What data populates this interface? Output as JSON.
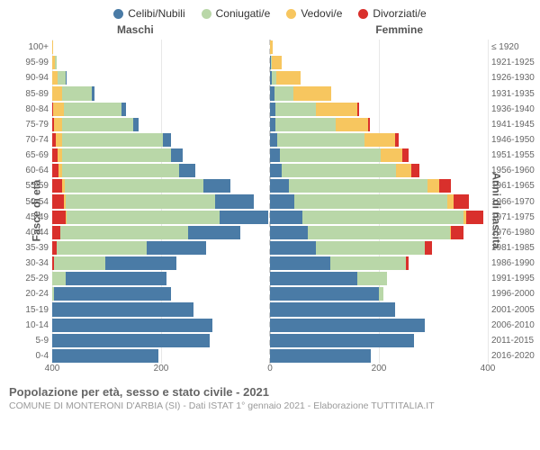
{
  "chart": {
    "type": "population-pyramid",
    "legend": [
      {
        "label": "Celibi/Nubili",
        "color": "#4a7ba6"
      },
      {
        "label": "Coniugati/e",
        "color": "#b9d7a8"
      },
      {
        "label": "Vedovi/e",
        "color": "#f7c65f"
      },
      {
        "label": "Divorziati/e",
        "color": "#d9302c"
      }
    ],
    "headers": {
      "male": "Maschi",
      "female": "Femmine"
    },
    "y_left_title": "Fasce di età",
    "y_right_title": "Anni di nascita",
    "x_max": 400,
    "x_ticks": [
      400,
      200,
      0,
      200,
      400
    ],
    "grid_color": "#e8e8e8",
    "center_line_color": "#cccccc",
    "background_color": "#ffffff",
    "label_fontsize": 10,
    "rows": [
      {
        "age": "0-4",
        "birth": "2016-2020",
        "male": {
          "cel": 195,
          "con": 0,
          "ved": 0,
          "div": 0
        },
        "female": {
          "cel": 185,
          "con": 0,
          "ved": 0,
          "div": 0
        }
      },
      {
        "age": "5-9",
        "birth": "2011-2015",
        "male": {
          "cel": 290,
          "con": 0,
          "ved": 0,
          "div": 0
        },
        "female": {
          "cel": 265,
          "con": 0,
          "ved": 0,
          "div": 0
        }
      },
      {
        "age": "10-14",
        "birth": "2006-2010",
        "male": {
          "cel": 295,
          "con": 0,
          "ved": 0,
          "div": 0
        },
        "female": {
          "cel": 285,
          "con": 0,
          "ved": 0,
          "div": 0
        }
      },
      {
        "age": "15-19",
        "birth": "2001-2005",
        "male": {
          "cel": 260,
          "con": 0,
          "ved": 0,
          "div": 0
        },
        "female": {
          "cel": 230,
          "con": 0,
          "ved": 0,
          "div": 0
        }
      },
      {
        "age": "20-24",
        "birth": "1996-2000",
        "male": {
          "cel": 215,
          "con": 3,
          "ved": 0,
          "div": 0
        },
        "female": {
          "cel": 200,
          "con": 8,
          "ved": 0,
          "div": 0
        }
      },
      {
        "age": "25-29",
        "birth": "1991-1995",
        "male": {
          "cel": 185,
          "con": 25,
          "ved": 0,
          "div": 0
        },
        "female": {
          "cel": 160,
          "con": 55,
          "ved": 0,
          "div": 0
        }
      },
      {
        "age": "30-34",
        "birth": "1986-1990",
        "male": {
          "cel": 130,
          "con": 95,
          "ved": 0,
          "div": 3
        },
        "female": {
          "cel": 110,
          "con": 140,
          "ved": 0,
          "div": 5
        }
      },
      {
        "age": "35-39",
        "birth": "1981-1985",
        "male": {
          "cel": 110,
          "con": 165,
          "ved": 0,
          "div": 8
        },
        "female": {
          "cel": 85,
          "con": 200,
          "ved": 0,
          "div": 12
        }
      },
      {
        "age": "40-44",
        "birth": "1976-1980",
        "male": {
          "cel": 95,
          "con": 235,
          "ved": 0,
          "div": 15
        },
        "female": {
          "cel": 70,
          "con": 260,
          "ved": 3,
          "div": 22
        }
      },
      {
        "age": "45-49",
        "birth": "1971-1975",
        "male": {
          "cel": 90,
          "con": 280,
          "ved": 2,
          "div": 25
        },
        "female": {
          "cel": 60,
          "con": 295,
          "ved": 6,
          "div": 30
        }
      },
      {
        "age": "50-54",
        "birth": "1966-1970",
        "male": {
          "cel": 70,
          "con": 275,
          "ved": 3,
          "div": 22
        },
        "female": {
          "cel": 45,
          "con": 280,
          "ved": 12,
          "div": 28
        }
      },
      {
        "age": "55-59",
        "birth": "1961-1965",
        "male": {
          "cel": 50,
          "con": 255,
          "ved": 5,
          "div": 18
        },
        "female": {
          "cel": 35,
          "con": 255,
          "ved": 20,
          "div": 22
        }
      },
      {
        "age": "60-64",
        "birth": "1956-1960",
        "male": {
          "cel": 30,
          "con": 215,
          "ved": 6,
          "div": 12
        },
        "female": {
          "cel": 22,
          "con": 210,
          "ved": 28,
          "div": 15
        }
      },
      {
        "age": "65-69",
        "birth": "1951-1955",
        "male": {
          "cel": 22,
          "con": 200,
          "ved": 8,
          "div": 10
        },
        "female": {
          "cel": 18,
          "con": 185,
          "ved": 40,
          "div": 12
        }
      },
      {
        "age": "70-74",
        "birth": "1946-1950",
        "male": {
          "cel": 15,
          "con": 185,
          "ved": 12,
          "div": 6
        },
        "female": {
          "cel": 14,
          "con": 160,
          "ved": 55,
          "div": 8
        }
      },
      {
        "age": "75-79",
        "birth": "1941-1945",
        "male": {
          "cel": 10,
          "con": 130,
          "ved": 15,
          "div": 3
        },
        "female": {
          "cel": 10,
          "con": 110,
          "ved": 60,
          "div": 4
        }
      },
      {
        "age": "80-84",
        "birth": "1936-1940",
        "male": {
          "cel": 8,
          "con": 105,
          "ved": 20,
          "div": 2
        },
        "female": {
          "cel": 10,
          "con": 75,
          "ved": 75,
          "div": 3
        }
      },
      {
        "age": "85-89",
        "birth": "1931-1935",
        "male": {
          "cel": 5,
          "con": 55,
          "ved": 18,
          "div": 0
        },
        "female": {
          "cel": 8,
          "con": 35,
          "ved": 70,
          "div": 0
        }
      },
      {
        "age": "90-94",
        "birth": "1926-1930",
        "male": {
          "cel": 2,
          "con": 15,
          "ved": 10,
          "div": 0
        },
        "female": {
          "cel": 4,
          "con": 8,
          "ved": 45,
          "div": 0
        }
      },
      {
        "age": "95-99",
        "birth": "1921-1925",
        "male": {
          "cel": 0,
          "con": 3,
          "ved": 5,
          "div": 0
        },
        "female": {
          "cel": 2,
          "con": 2,
          "ved": 18,
          "div": 0
        }
      },
      {
        "age": "100+",
        "birth": "≤ 1920",
        "male": {
          "cel": 0,
          "con": 0,
          "ved": 2,
          "div": 0
        },
        "female": {
          "cel": 0,
          "con": 0,
          "ved": 5,
          "div": 0
        }
      }
    ]
  },
  "footer": {
    "title": "Popolazione per età, sesso e stato civile - 2021",
    "subtitle": "COMUNE DI MONTERONI D'ARBIA (SI) - Dati ISTAT 1° gennaio 2021 - Elaborazione TUTTITALIA.IT"
  }
}
